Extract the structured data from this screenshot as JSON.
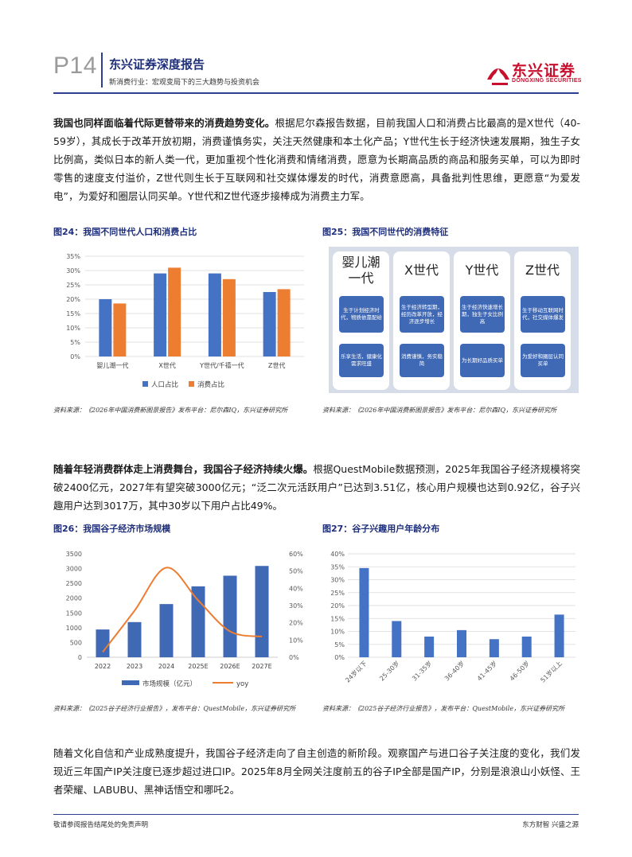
{
  "header": {
    "page": "P14",
    "title": "东兴证券深度报告",
    "subtitle": "新消费行业：宏观变局下的三大趋势与投资机会",
    "logo_text": "东兴证券",
    "logo_en": "DONGXING SECURITIES"
  },
  "p1": {
    "bold": "我国也同样面临着代际更替带来的消费趋势变化。",
    "rest": "根据尼尔森报告数据，目前我国人口和消费占比最高的是X世代（40-59岁），其成长于改革开放初期，消费谨慎务实，关注天然健康和本土化产品；Y世代生长于经济快速发展期，独生子女比例高，类似日本的新人类一代，更加重视个性化消费和情绪消费，愿意为长期高品质的商品和服务买单，可以为即时零售的速度支付溢价，Z世代则生长于互联网和社交媒体爆发的时代，消费意愿高，具备批判性思维，更愿意“为爱发电”，为爱好和圈层认同买单。Y世代和Z世代逐步接棒成为消费主力军。"
  },
  "fig24": {
    "caption": "图24：我国不同世代人口和消费占比",
    "source": "资料来源：《2026年中国消费新图景报告》发布平台：尼尔森IQ，东兴证券研究所"
  },
  "fig25": {
    "caption": "图25：我国不同世代的消费特征",
    "source": "资料来源：《2026年中国消费新图景报告》发布平台：尼尔森IQ，东兴证券研究所",
    "columns": [
      {
        "title": "婴儿潮一代",
        "t1": "婴儿潮",
        "t2": "一代",
        "box1": "生于计划经济时代，物质依靠配给",
        "box2": "乐享生活，健康化需求旺盛"
      },
      {
        "title": "X世代",
        "box1": "生于经济转型期，经历改革开放，经济逐步增长",
        "box2": "消费谨慎，务实稳简"
      },
      {
        "title": "Y世代",
        "box1": "生于经济快速增长期，独生子女比例高",
        "box2": "为长期好品质买单"
      },
      {
        "title": "Z世代",
        "box1": "生于移动互联网时代，社交媒体爆发",
        "box2": "为爱好和圈层认同买单"
      }
    ]
  },
  "p2": {
    "bold": "随着年轻消费群体走上消费舞台，我国谷子经济持续火爆。",
    "rest": "根据QuestMobile数据预测，2025年我国谷子经济规模将突破2400亿元，2027年有望突破3000亿元；“泛二次元活跃用户”已达到3.51亿，核心用户规模也达到0.92亿，谷子兴趣用户达到3017万，其中30岁以下用户占比49%。"
  },
  "fig26": {
    "caption": "图26：我国谷子经济市场规模",
    "source": "资料来源：《2025谷子经济行业报告》，发布平台：QuestMobile，东兴证券研究所"
  },
  "fig27": {
    "caption": "图27：谷子兴趣用户年龄分布",
    "source": "资料来源：《2025谷子经济行业报告》，发布平台：QuestMobile，东兴证券研究所"
  },
  "p3": {
    "text": "随着文化自信和产业成熟度提升，我国谷子经济走向了自主创造的新阶段。观察国产与进口谷子关注度的变化，我们发现近三年国产IP关注度已逐步超过进口IP。2025年8月全网关注度前五的谷子IP全部是国产IP，分别是浪浪山小妖怪、王者荣耀、LABUBU、黑神话悟空和哪吒2。"
  },
  "footer": {
    "left": "敬请参阅报告结尾处的免责声明",
    "right": "东方财智  兴盛之源"
  },
  "colors": {
    "navy": "#1f2f7a",
    "blue": "#4472c4",
    "orange": "#ed7d31",
    "red": "#c8102e",
    "card_blue": "#3f68b5"
  },
  "chart_data": [
    {
      "id": "fig24",
      "type": "bar",
      "categories": [
        "婴儿潮一代",
        "X世代",
        "Y世代/千禧一代",
        "Z世代"
      ],
      "series": [
        {
          "name": "人口占比",
          "values": [
            20,
            29,
            29,
            22.5
          ]
        },
        {
          "name": "消费占比",
          "values": [
            18.5,
            31,
            27,
            23.5
          ]
        }
      ],
      "yticks": [
        "0%",
        "5%",
        "10%",
        "15%",
        "20%",
        "25%",
        "30%",
        "35%"
      ],
      "ylim": [
        0,
        35
      ],
      "legend": "bottom"
    },
    {
      "id": "fig26",
      "type": "bar+line",
      "categories": [
        "2022",
        "2023",
        "2024",
        "2025E",
        "2026E",
        "2027E"
      ],
      "series": [
        {
          "name": "市场规模（亿元）",
          "axis": "left",
          "type": "bar",
          "values": [
            940,
            1190,
            1800,
            2400,
            2760,
            3090
          ]
        },
        {
          "name": "yoy",
          "axis": "right",
          "type": "line",
          "values": [
            3,
            27,
            52,
            33,
            15,
            12
          ]
        }
      ],
      "yticks_left": [
        "0",
        "500",
        "1000",
        "1500",
        "2000",
        "2500",
        "3000",
        "3500"
      ],
      "yticks_right": [
        "0%",
        "10%",
        "20%",
        "30%",
        "40%",
        "50%",
        "60%"
      ],
      "ylim_left": [
        0,
        3500
      ],
      "ylim_right": [
        0,
        60
      ],
      "legend": "bottom"
    },
    {
      "id": "fig27",
      "type": "bar",
      "categories": [
        "24岁以下",
        "25-30岁",
        "31-35岁",
        "36-40岁",
        "41-45岁",
        "46-50岁",
        "51岁以上"
      ],
      "values": [
        34.5,
        14,
        8,
        10.5,
        7,
        8,
        16.5
      ],
      "yticks": [
        "0%",
        "5%",
        "10%",
        "15%",
        "20%",
        "25%",
        "30%",
        "35%",
        "40%"
      ],
      "ylim": [
        0,
        40
      ]
    }
  ]
}
